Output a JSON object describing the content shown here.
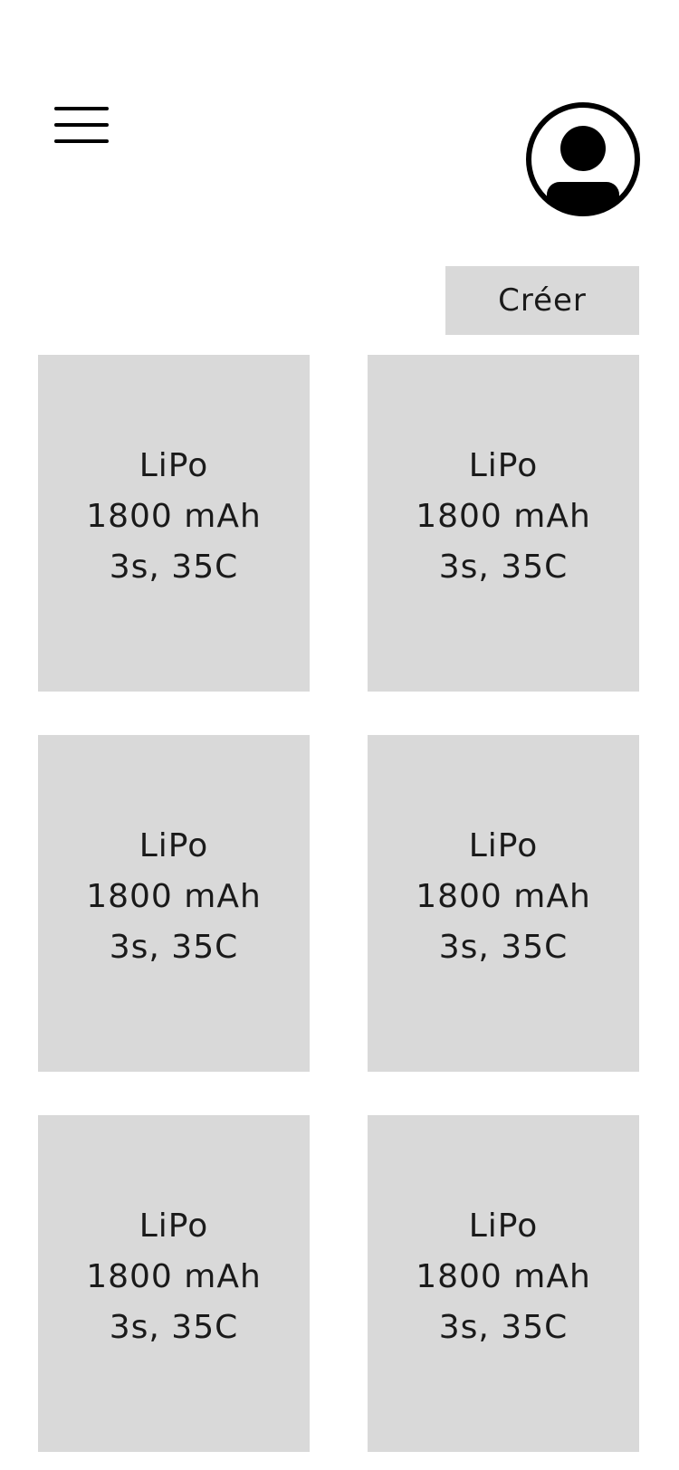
{
  "header": {
    "menu_icon": "hamburger-menu-icon",
    "avatar_icon": "user-avatar-icon"
  },
  "actions": {
    "create_label": "Créer"
  },
  "batteries": [
    {
      "type": "LiPo",
      "capacity": "1800 mAh",
      "spec": "3s, 35C"
    },
    {
      "type": "LiPo",
      "capacity": "1800 mAh",
      "spec": "3s, 35C"
    },
    {
      "type": "LiPo",
      "capacity": "1800 mAh",
      "spec": "3s, 35C"
    },
    {
      "type": "LiPo",
      "capacity": "1800 mAh",
      "spec": "3s, 35C"
    },
    {
      "type": "LiPo",
      "capacity": "1800 mAh",
      "spec": "3s, 35C"
    },
    {
      "type": "LiPo",
      "capacity": "1800 mAh",
      "spec": "3s, 35C"
    }
  ],
  "colors": {
    "card_background": "#d9d9d9",
    "icon": "#000000",
    "page_background": "#ffffff"
  }
}
